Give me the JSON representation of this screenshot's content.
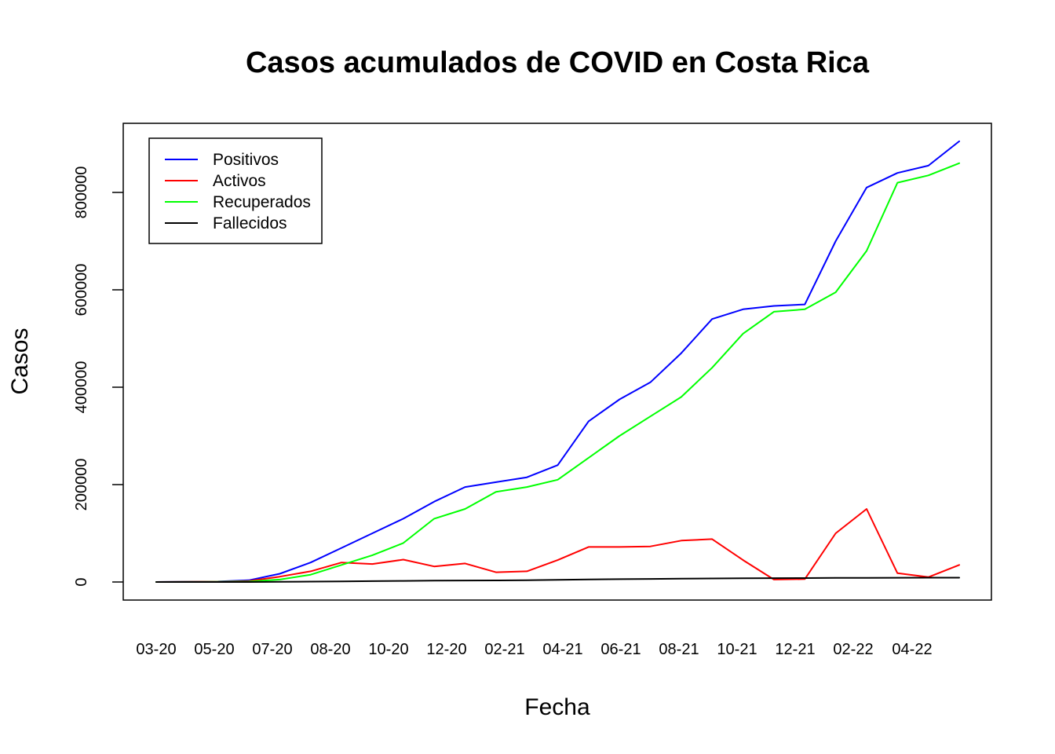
{
  "chart_data": {
    "type": "line",
    "title": "Casos acumulados de COVID en Costa Rica",
    "xlabel": "Fecha",
    "ylabel": "Casos",
    "x_tick_labels": [
      "03-20",
      "05-20",
      "07-20",
      "08-20",
      "10-20",
      "12-20",
      "02-21",
      "04-21",
      "06-21",
      "08-21",
      "10-21",
      "12-21",
      "02-22",
      "04-22"
    ],
    "y_ticks": [
      0,
      200000,
      400000,
      600000,
      800000
    ],
    "y_tick_labels": [
      "0",
      "200000",
      "400000",
      "600000",
      "800000"
    ],
    "ylim": [
      -35000,
      940000
    ],
    "legend_position": "top-left",
    "grid": false,
    "x": [
      "2020-03",
      "2020-04",
      "2020-05",
      "2020-06",
      "2020-07",
      "2020-08",
      "2020-09",
      "2020-10",
      "2020-11",
      "2020-12",
      "2021-01",
      "2021-02",
      "2021-03",
      "2021-04",
      "2021-05",
      "2021-06",
      "2021-07",
      "2021-08",
      "2021-09",
      "2021-10",
      "2021-11",
      "2021-12",
      "2022-01",
      "2022-02",
      "2022-03",
      "2022-04",
      "2022-05"
    ],
    "series": [
      {
        "name": "Positivos",
        "color": "#0000ff",
        "values": [
          0,
          700,
          1000,
          3500,
          17000,
          40000,
          70000,
          100000,
          130000,
          165000,
          195000,
          205000,
          215000,
          240000,
          330000,
          375000,
          410000,
          470000,
          540000,
          560000,
          567000,
          570000,
          700000,
          810000,
          840000,
          855000,
          905000
        ]
      },
      {
        "name": "Activos",
        "color": "#ff0000",
        "values": [
          0,
          500,
          600,
          2000,
          11000,
          22000,
          40000,
          37000,
          46000,
          32000,
          38000,
          20000,
          22000,
          45000,
          72000,
          72000,
          73000,
          85000,
          88000,
          45000,
          5000,
          6000,
          100000,
          150000,
          18000,
          10000,
          35000
        ]
      },
      {
        "name": "Recuperados",
        "color": "#00ff00",
        "values": [
          0,
          100,
          300,
          1000,
          5000,
          15000,
          35000,
          55000,
          80000,
          130000,
          150000,
          185000,
          195000,
          210000,
          255000,
          300000,
          340000,
          380000,
          440000,
          510000,
          555000,
          560000,
          595000,
          680000,
          820000,
          835000,
          860000
        ]
      },
      {
        "name": "Fallecidos",
        "color": "#000000",
        "values": [
          0,
          10,
          20,
          50,
          300,
          800,
          1200,
          1800,
          2200,
          2700,
          3000,
          3200,
          3600,
          4500,
          5300,
          5800,
          6300,
          6900,
          7300,
          7700,
          7900,
          8000,
          8400,
          8600,
          8700,
          8800,
          8900
        ]
      }
    ]
  }
}
